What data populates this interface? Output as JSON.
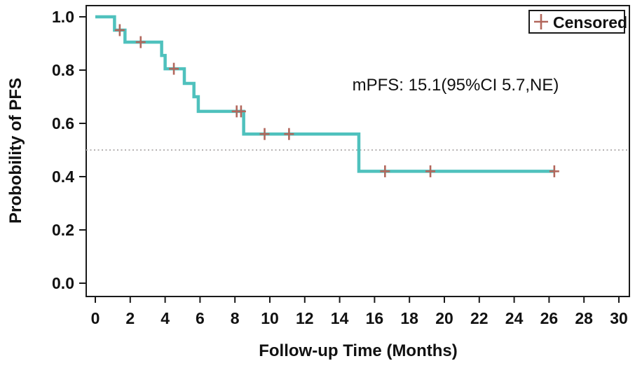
{
  "chart_data": {
    "type": "line",
    "subtype": "kaplan-meier-step-curve",
    "title": "",
    "xlabel": "Follow-up Time (Months)",
    "ylabel": "Probobility of PFS",
    "annotation": "mPFS: 15.1(95%CI 5.7,NE)",
    "legend": {
      "label": "Censored",
      "marker": "plus"
    },
    "legend_position": "top-right",
    "grid": false,
    "xlim": [
      0,
      30
    ],
    "ylim": [
      0.0,
      1.0
    ],
    "xticks": [
      0,
      2,
      4,
      6,
      8,
      10,
      12,
      14,
      16,
      18,
      20,
      22,
      24,
      26,
      28,
      30
    ],
    "yticks": [
      0.0,
      0.2,
      0.4,
      0.6,
      0.8,
      1.0
    ],
    "ytick_labels": [
      "0.0",
      "0.2",
      "0.4",
      "0.6",
      "0.8",
      "1.0"
    ],
    "reference_line": {
      "y": 0.5,
      "style": "dotted"
    },
    "series": [
      {
        "name": "PFS",
        "steps_time_probability": [
          [
            0,
            1.0
          ],
          [
            1.1,
            0.95
          ],
          [
            1.7,
            0.905
          ],
          [
            3.8,
            0.855
          ],
          [
            4.0,
            0.805
          ],
          [
            5.1,
            0.75
          ],
          [
            5.65,
            0.7
          ],
          [
            5.9,
            0.645
          ],
          [
            8.5,
            0.56
          ],
          [
            15.1,
            0.42
          ]
        ],
        "curve_end_time": 26.3,
        "censored_time_probability": [
          [
            1.4,
            0.95
          ],
          [
            2.6,
            0.905
          ],
          [
            4.5,
            0.805
          ],
          [
            8.1,
            0.645
          ],
          [
            8.35,
            0.645
          ],
          [
            9.7,
            0.56
          ],
          [
            11.1,
            0.56
          ],
          [
            16.6,
            0.42
          ],
          [
            19.2,
            0.42
          ],
          [
            26.3,
            0.42
          ]
        ]
      }
    ],
    "colors": {
      "curve": "#4fc1bd",
      "censor": "#b2675c",
      "reference_line": "#b5b2b2",
      "axis": "#1a1a1a"
    }
  }
}
